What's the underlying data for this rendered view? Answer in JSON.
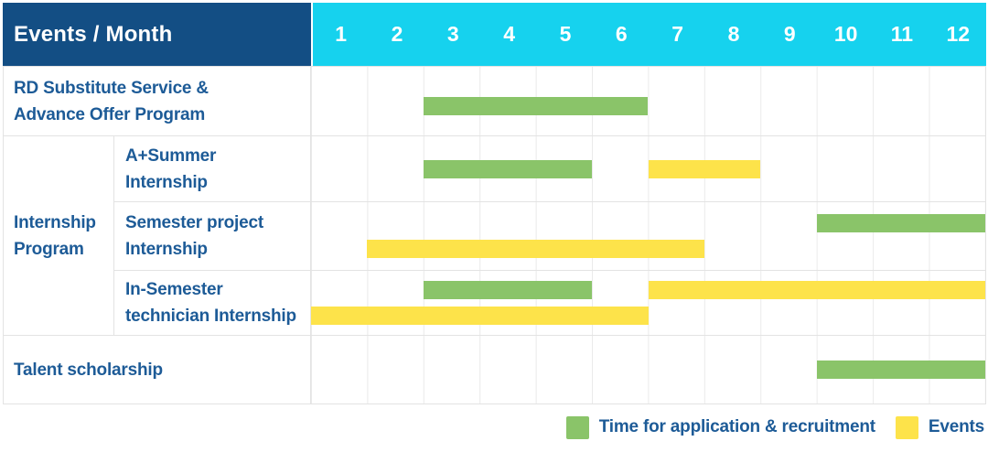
{
  "header": {
    "title": "Events / Month",
    "months": [
      "1",
      "2",
      "3",
      "4",
      "5",
      "6",
      "7",
      "8",
      "9",
      "10",
      "11",
      "12"
    ]
  },
  "colors": {
    "header_bg": "#134e84",
    "months_bg": "#16d2ee",
    "green": "#8ac469",
    "yellow": "#fde34a",
    "text": "#1d5b97",
    "grid": "#eaeaea",
    "border": "#e3e3e3"
  },
  "rows": {
    "rd_substitute": {
      "line1": "RD Substitute Service &",
      "line2": "Advance Offer Program"
    },
    "internship_group": {
      "line1": "Internship",
      "line2": "Program"
    },
    "a_summer": {
      "line1": "A+Summer",
      "line2": "Internship"
    },
    "semester_project": {
      "line1": "Semester project",
      "line2": "Internship"
    },
    "in_semester": {
      "line1": "In-Semester",
      "line2": "technician Internship"
    },
    "talent": {
      "line1": "Talent scholarship",
      "line2": ""
    }
  },
  "bars": {
    "rd_substitute": [
      [
        {
          "color": "green",
          "start": 3,
          "end": 6
        }
      ]
    ],
    "a_summer": [
      [
        {
          "color": "green",
          "start": 3,
          "end": 5
        },
        {
          "color": "yellow",
          "start": 7,
          "end": 8
        }
      ]
    ],
    "semester_project": [
      [
        {
          "color": "green",
          "start": 10,
          "end": 12
        }
      ],
      [
        {
          "color": "yellow",
          "start": 2,
          "end": 7
        }
      ]
    ],
    "in_semester": [
      [
        {
          "color": "green",
          "start": 3,
          "end": 5
        },
        {
          "color": "yellow",
          "start": 7,
          "end": 12
        }
      ],
      [
        {
          "color": "yellow",
          "start": 1,
          "end": 6
        }
      ]
    ],
    "talent": [
      [
        {
          "color": "green",
          "start": 10,
          "end": 12
        }
      ]
    ]
  },
  "legend": {
    "items": [
      {
        "color": "green",
        "label": "Time for application & recruitment"
      },
      {
        "color": "yellow",
        "label": "Events"
      }
    ]
  },
  "chart_data": {
    "type": "gantt",
    "x_unit": "month",
    "x_ticks": [
      1,
      2,
      3,
      4,
      5,
      6,
      7,
      8,
      9,
      10,
      11,
      12
    ],
    "legend": [
      {
        "label": "Time for application & recruitment",
        "color": "#8ac469",
        "kind": "application"
      },
      {
        "label": "Events",
        "color": "#fde34a",
        "kind": "event"
      }
    ],
    "tasks": [
      {
        "group": null,
        "name": "RD Substitute Service & Advance Offer Program",
        "bars": [
          {
            "kind": "application",
            "start_month": 3,
            "end_month": 6
          }
        ]
      },
      {
        "group": "Internship Program",
        "name": "A+Summer Internship",
        "bars": [
          {
            "kind": "application",
            "start_month": 3,
            "end_month": 5
          },
          {
            "kind": "event",
            "start_month": 7,
            "end_month": 8
          }
        ]
      },
      {
        "group": "Internship Program",
        "name": "Semester project Internship",
        "bars": [
          {
            "kind": "application",
            "start_month": 10,
            "end_month": 12
          },
          {
            "kind": "event",
            "start_month": 2,
            "end_month": 7
          }
        ]
      },
      {
        "group": "Internship Program",
        "name": "In-Semester technician Internship",
        "bars": [
          {
            "kind": "application",
            "start_month": 3,
            "end_month": 5
          },
          {
            "kind": "event",
            "start_month": 7,
            "end_month": 12
          },
          {
            "kind": "event",
            "start_month": 1,
            "end_month": 6
          }
        ]
      },
      {
        "group": null,
        "name": "Talent scholarship",
        "bars": [
          {
            "kind": "application",
            "start_month": 10,
            "end_month": 12
          }
        ]
      }
    ]
  }
}
